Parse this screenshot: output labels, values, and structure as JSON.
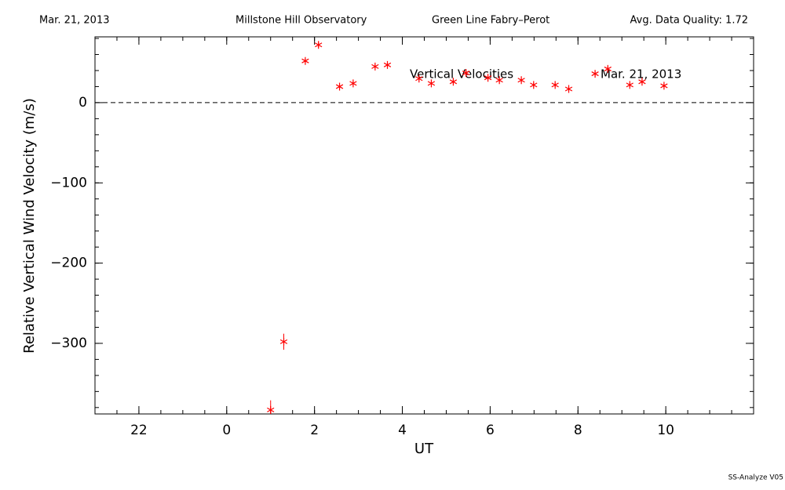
{
  "chart_data": {
    "type": "scatter",
    "header": [
      "Mar. 21, 2013",
      "Millstone Hill Observatory",
      "Green Line Fabry–Perot",
      "Avg. Data Quality: 1.72"
    ],
    "annotations": [
      "Vertical Velocities",
      "Mar. 21, 2013"
    ],
    "xlabel": "UT",
    "ylabel": "Relative Vertical Wind Velocity (m/s)",
    "footer": "SS-Analyze V05",
    "color": "#ff0000",
    "zero_line": true,
    "x": [
      1.0,
      1.3,
      1.79,
      2.09,
      2.57,
      2.88,
      3.38,
      3.66,
      4.38,
      4.66,
      5.16,
      5.45,
      5.95,
      6.21,
      6.71,
      6.99,
      7.48,
      7.79,
      8.39,
      8.68,
      9.18,
      9.46,
      9.96
    ],
    "values": [
      -383,
      -298,
      52,
      72,
      20,
      24,
      45,
      47,
      30,
      24,
      26,
      37,
      31,
      28,
      28,
      22,
      22,
      17,
      36,
      42,
      22,
      26,
      21
    ],
    "errors": [
      12,
      10,
      3,
      3,
      2,
      2,
      2,
      2,
      2,
      2,
      2,
      3,
      2,
      2,
      2,
      2,
      2,
      2,
      3,
      3,
      2,
      2,
      2
    ],
    "xlim": [
      -3,
      12
    ],
    "xticks": [
      {
        "value": -2,
        "label": "22"
      },
      0,
      2,
      4,
      6,
      8,
      10
    ],
    "ylim": [
      -388,
      82
    ],
    "yticks": [
      {
        "value": -300,
        "label": "−300"
      },
      {
        "value": -200,
        "label": "−200"
      },
      {
        "value": -100,
        "label": "−100"
      },
      0
    ]
  }
}
